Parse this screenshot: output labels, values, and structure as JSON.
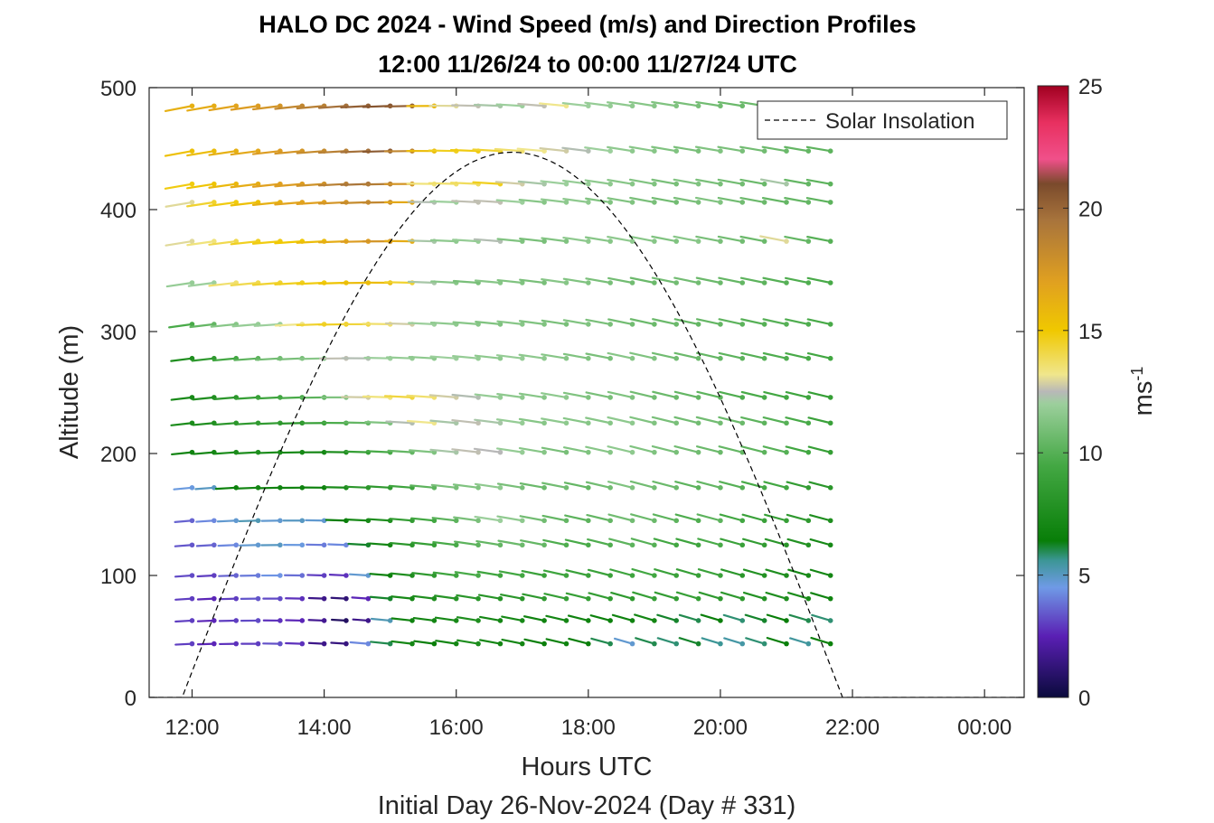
{
  "title": "HALO DC 2024 - Wind Speed (m/s) and Direction Profiles",
  "subtitle": "12:00 11/26/24 to 00:00 11/27/24  UTC",
  "chart_data": {
    "type": "wind-barb-profile",
    "xlabel": "Hours UTC",
    "xlabel2": "Initial Day 26-Nov-2024 (Day # 331)",
    "ylabel": "Altitude (m)",
    "xlim_hours": [
      11.35,
      24.6
    ],
    "ylim": [
      0,
      500
    ],
    "xticks": [
      {
        "h": 12,
        "label": "12:00"
      },
      {
        "h": 14,
        "label": "14:00"
      },
      {
        "h": 16,
        "label": "16:00"
      },
      {
        "h": 18,
        "label": "18:00"
      },
      {
        "h": 20,
        "label": "20:00"
      },
      {
        "h": 22,
        "label": "22:00"
      },
      {
        "h": 24,
        "label": "00:00"
      }
    ],
    "yticks": [
      0,
      100,
      200,
      300,
      400,
      500
    ],
    "colorbar": {
      "label": "ms-1",
      "range": [
        0,
        25
      ],
      "ticks": [
        0,
        5,
        10,
        15,
        20,
        25
      ],
      "stops": [
        {
          "v": 0,
          "c": "#0a0a3c"
        },
        {
          "v": 2.5,
          "c": "#5a1fb4"
        },
        {
          "v": 4.5,
          "c": "#6f9ae6"
        },
        {
          "v": 5.6,
          "c": "#3c9696"
        },
        {
          "v": 6.4,
          "c": "#087e08"
        },
        {
          "v": 9.5,
          "c": "#44a844"
        },
        {
          "v": 12,
          "c": "#9ccf9c"
        },
        {
          "v": 12.5,
          "c": "#b8b8b8"
        },
        {
          "v": 13.2,
          "c": "#f0e68c"
        },
        {
          "v": 15,
          "c": "#f0c800"
        },
        {
          "v": 17,
          "c": "#e0a020"
        },
        {
          "v": 19.5,
          "c": "#a8743c"
        },
        {
          "v": 21,
          "c": "#7a4a2c"
        },
        {
          "v": 22,
          "c": "#f0508a"
        },
        {
          "v": 23.5,
          "c": "#e83060"
        },
        {
          "v": 25,
          "c": "#a00020"
        }
      ]
    },
    "legend": {
      "label": "Solar Insolation",
      "position": "top-right"
    },
    "solar_insolation": {
      "start_hour": 11.85,
      "end_hour": 21.85,
      "peak_altitude_m": 447
    },
    "hours": [
      12.0,
      12.333,
      12.667,
      13.0,
      13.333,
      13.667,
      14.0,
      14.333,
      14.667,
      15.0,
      15.333,
      15.667,
      16.0,
      16.333,
      16.667,
      17.0,
      17.333,
      17.667,
      18.0,
      18.333,
      18.667,
      19.0,
      19.333,
      19.667,
      20.0,
      20.333,
      20.667,
      21.0,
      21.333,
      21.667
    ],
    "levels_m": [
      44,
      63,
      81,
      100,
      125,
      145,
      172,
      201,
      225,
      246,
      278,
      306,
      340,
      374,
      406,
      421,
      448,
      485
    ],
    "speed_grid_ms": [
      [
        3.0,
        2.6,
        2.8,
        3.0,
        3.3,
        2.8,
        1.6,
        1.4,
        4.2,
        6.0,
        7.0,
        6.5,
        7.0,
        7.5,
        7.0,
        7.0,
        6.5,
        6.8,
        6.5,
        6.0,
        4.8,
        6.0,
        5.8,
        6.2,
        5.6,
        5.4,
        5.8,
        6.5,
        5.5,
        6.6
      ],
      [
        3.0,
        2.6,
        3.0,
        3.2,
        2.8,
        2.6,
        1.8,
        0.8,
        1.6,
        5.2,
        6.8,
        7.0,
        7.2,
        7.6,
        7.0,
        7.2,
        6.8,
        7.0,
        6.8,
        6.6,
        6.8,
        7.0,
        6.2,
        6.0,
        6.5,
        5.8,
        6.2,
        6.4,
        6.0,
        5.8
      ],
      [
        3.0,
        2.6,
        3.0,
        3.4,
        3.2,
        2.8,
        1.6,
        1.2,
        2.6,
        6.2,
        7.2,
        7.6,
        8.0,
        8.2,
        8.0,
        8.2,
        8.4,
        8.8,
        8.8,
        8.6,
        8.4,
        8.8,
        8.6,
        8.8,
        8.4,
        8.4,
        7.8,
        7.6,
        7.4,
        6.8
      ],
      [
        3.2,
        3.0,
        3.6,
        4.0,
        4.4,
        3.8,
        3.0,
        2.8,
        4.8,
        6.6,
        7.6,
        8.4,
        9.2,
        9.6,
        9.2,
        9.4,
        9.0,
        9.2,
        9.0,
        9.0,
        9.2,
        9.4,
        9.0,
        8.8,
        9.0,
        8.2,
        7.8,
        7.6,
        7.2,
        7.0
      ],
      [
        3.4,
        3.6,
        4.2,
        4.8,
        5.0,
        4.6,
        4.0,
        4.2,
        6.2,
        7.0,
        8.2,
        8.8,
        9.6,
        10.2,
        10.4,
        10.6,
        10.4,
        9.8,
        9.6,
        9.8,
        10.2,
        10.0,
        9.4,
        9.2,
        9.6,
        9.0,
        8.6,
        8.2,
        7.8,
        7.2
      ],
      [
        3.6,
        4.2,
        4.8,
        5.2,
        4.8,
        5.0,
        4.8,
        6.4,
        7.2,
        7.6,
        8.6,
        9.4,
        10.2,
        11.0,
        12.0,
        11.6,
        10.8,
        10.4,
        10.2,
        10.4,
        10.8,
        10.6,
        10.2,
        9.8,
        10.2,
        9.4,
        9.0,
        8.8,
        8.4,
        7.6
      ],
      [
        4.6,
        5.0,
        6.6,
        7.0,
        6.8,
        6.8,
        6.6,
        7.4,
        8.2,
        8.4,
        9.2,
        10.2,
        11.0,
        11.2,
        11.6,
        11.0,
        10.6,
        10.8,
        10.4,
        10.8,
        11.2,
        10.8,
        10.6,
        10.2,
        10.4,
        10.0,
        9.6,
        9.4,
        8.6,
        8.2
      ],
      [
        6.8,
        7.0,
        7.4,
        7.6,
        7.4,
        7.2,
        7.0,
        7.6,
        8.8,
        9.6,
        10.4,
        11.2,
        12.2,
        12.6,
        12.5,
        11.8,
        11.4,
        11.0,
        11.2,
        11.4,
        11.6,
        11.2,
        11.0,
        10.8,
        10.6,
        10.4,
        10.2,
        10.0,
        9.4,
        8.8
      ],
      [
        7.4,
        7.6,
        8.2,
        8.4,
        8.6,
        8.2,
        8.8,
        9.6,
        10.4,
        11.2,
        12.4,
        13.2,
        12.2,
        12.6,
        12.2,
        11.8,
        11.4,
        11.6,
        11.4,
        11.4,
        11.6,
        11.2,
        11.0,
        10.8,
        10.8,
        10.6,
        10.2,
        10.0,
        9.6,
        9.0
      ],
      [
        7.2,
        7.6,
        8.2,
        8.8,
        9.2,
        9.6,
        10.2,
        11.2,
        12.8,
        13.4,
        14.2,
        13.6,
        12.8,
        12.4,
        11.8,
        11.6,
        11.4,
        11.6,
        11.2,
        11.0,
        11.2,
        10.8,
        10.6,
        10.4,
        10.2,
        9.8,
        9.6,
        9.4,
        9.2,
        8.8
      ],
      [
        7.6,
        8.4,
        9.4,
        10.2,
        10.8,
        11.0,
        11.4,
        12.6,
        12.4,
        12.0,
        11.8,
        11.6,
        12.0,
        11.8,
        11.6,
        11.8,
        11.6,
        11.4,
        11.2,
        11.0,
        11.4,
        11.2,
        10.8,
        10.6,
        10.4,
        10.2,
        10.0,
        9.8,
        9.6,
        9.4
      ],
      [
        9.6,
        10.4,
        11.4,
        11.8,
        12.0,
        13.2,
        14.4,
        14.6,
        14.2,
        13.6,
        12.8,
        12.0,
        11.6,
        11.4,
        11.2,
        11.4,
        11.2,
        11.0,
        11.2,
        11.0,
        10.8,
        10.6,
        10.6,
        10.4,
        10.4,
        10.2,
        10.0,
        10.0,
        9.8,
        9.6
      ],
      [
        11.8,
        12.0,
        13.6,
        14.0,
        14.4,
        14.6,
        14.8,
        15.2,
        15.6,
        15.6,
        14.4,
        12.2,
        11.4,
        11.0,
        11.4,
        11.2,
        11.0,
        11.4,
        11.2,
        11.0,
        10.8,
        10.6,
        10.8,
        10.8,
        10.6,
        10.4,
        10.2,
        10.0,
        9.8,
        9.6
      ],
      [
        13.0,
        13.4,
        14.0,
        14.6,
        14.8,
        15.0,
        15.6,
        16.4,
        17.2,
        17.6,
        16.4,
        12.2,
        11.6,
        11.8,
        12.4,
        11.2,
        11.0,
        11.2,
        11.6,
        11.4,
        11.6,
        11.4,
        11.2,
        11.4,
        11.0,
        10.8,
        10.6,
        13.0,
        10.4,
        10.0
      ],
      [
        13.0,
        14.4,
        14.8,
        15.4,
        16.2,
        16.8,
        17.0,
        17.6,
        18.2,
        18.4,
        16.6,
        12.4,
        12.0,
        12.6,
        12.6,
        12.0,
        11.4,
        11.6,
        11.6,
        11.2,
        11.2,
        11.0,
        10.8,
        11.0,
        11.2,
        10.8,
        10.6,
        10.4,
        10.4,
        10.2
      ],
      [
        14.8,
        15.2,
        15.8,
        16.4,
        17.0,
        17.2,
        17.8,
        18.8,
        19.4,
        19.0,
        17.6,
        13.4,
        13.6,
        13.8,
        14.6,
        12.8,
        12.2,
        12.0,
        11.8,
        11.6,
        11.4,
        11.2,
        11.0,
        11.2,
        11.0,
        10.8,
        10.6,
        12.2,
        10.4,
        10.2
      ],
      [
        15.4,
        15.6,
        16.2,
        16.6,
        17.2,
        17.6,
        18.2,
        18.8,
        19.6,
        20.4,
        18.4,
        15.6,
        14.6,
        14.8,
        14.4,
        13.6,
        13.2,
        12.8,
        12.4,
        12.0,
        11.6,
        11.4,
        11.2,
        11.0,
        11.2,
        11.0,
        10.8,
        10.6,
        10.4,
        10.2
      ],
      [
        16.2,
        16.4,
        16.8,
        17.2,
        17.6,
        18.4,
        18.8,
        19.6,
        20.2,
        20.6,
        20.2,
        15.8,
        13.0,
        12.6,
        12.2,
        12.0,
        12.6,
        13.2,
        12.0,
        11.8,
        11.6,
        11.4,
        11.2,
        11.0,
        10.8,
        10.6,
        10.6,
        12.8,
        10.4,
        10.2
      ]
    ]
  }
}
